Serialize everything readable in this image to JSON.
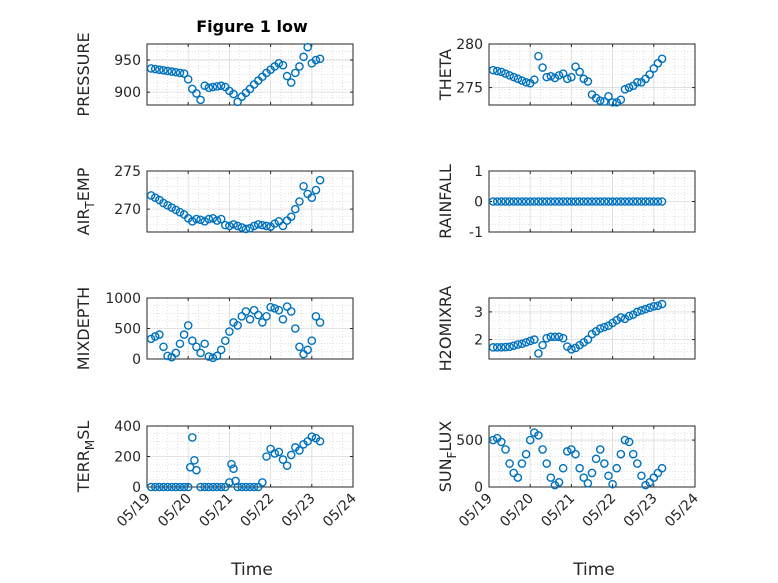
{
  "figure_title": "Figure 1 low",
  "xlabel": "Time",
  "xtick_labels": [
    "05/19",
    "05/20",
    "05/21",
    "05/22",
    "05/23",
    "05/24"
  ],
  "marker_color": "#0072BD",
  "chart_data": [
    {
      "type": "scatter",
      "ylabel": "PRESSURE",
      "ylim": [
        880,
        975
      ],
      "yticks": [
        900,
        950
      ],
      "grid": true,
      "x_range": [
        "05/19",
        "05/24"
      ],
      "x": [
        0.1,
        0.2,
        0.3,
        0.4,
        0.5,
        0.6,
        0.7,
        0.8,
        0.9,
        1.0,
        1.1,
        1.2,
        1.3,
        1.4,
        1.5,
        1.6,
        1.7,
        1.8,
        1.9,
        2.0,
        2.1,
        2.2,
        2.3,
        2.4,
        2.5,
        2.6,
        2.7,
        2.8,
        2.9,
        3.0,
        3.1,
        3.2,
        3.3,
        3.4,
        3.5,
        3.6,
        3.7,
        3.8,
        3.9,
        4.0,
        4.1,
        4.2
      ],
      "y": [
        937,
        936,
        935,
        934,
        933,
        932,
        931,
        930,
        929,
        920,
        905,
        898,
        888,
        910,
        907,
        908,
        909,
        910,
        908,
        902,
        897,
        885,
        893,
        899,
        905,
        912,
        918,
        924,
        930,
        935,
        940,
        945,
        942,
        925,
        915,
        930,
        940,
        955,
        970,
        945,
        950,
        952
      ]
    },
    {
      "type": "scatter",
      "ylabel": "THETA",
      "ylim": [
        273,
        280
      ],
      "yticks": [
        275,
        280
      ],
      "grid": true,
      "x_range": [
        "05/19",
        "05/24"
      ],
      "x": [
        0.1,
        0.2,
        0.3,
        0.4,
        0.5,
        0.6,
        0.7,
        0.8,
        0.9,
        1.0,
        1.1,
        1.2,
        1.3,
        1.4,
        1.5,
        1.6,
        1.7,
        1.8,
        1.9,
        2.0,
        2.1,
        2.2,
        2.3,
        2.4,
        2.5,
        2.6,
        2.7,
        2.8,
        2.9,
        3.0,
        3.1,
        3.2,
        3.3,
        3.4,
        3.5,
        3.6,
        3.7,
        3.8,
        3.9,
        4.0,
        4.1,
        4.2
      ],
      "y": [
        277.0,
        276.9,
        276.8,
        276.6,
        276.4,
        276.2,
        276.0,
        275.8,
        275.6,
        275.5,
        275.9,
        278.6,
        277.3,
        276.2,
        276.3,
        276.1,
        276.4,
        276.6,
        276.0,
        276.2,
        277.4,
        276.8,
        276.0,
        275.7,
        274.2,
        273.8,
        273.5,
        273.4,
        274.0,
        273.3,
        273.3,
        273.6,
        274.8,
        275.0,
        275.2,
        275.6,
        275.6,
        276.0,
        276.5,
        277.2,
        277.8,
        278.3
      ]
    },
    {
      "type": "scatter",
      "ylabel_main": "AIR",
      "ylabel_sub": "T",
      "ylabel_rest": "EMP",
      "ylim": [
        267,
        275
      ],
      "yticks": [
        270,
        275
      ],
      "grid": true,
      "x_range": [
        "05/19",
        "05/24"
      ],
      "x": [
        0.1,
        0.2,
        0.3,
        0.4,
        0.5,
        0.6,
        0.7,
        0.8,
        0.9,
        1.0,
        1.1,
        1.2,
        1.3,
        1.4,
        1.5,
        1.6,
        1.7,
        1.8,
        1.9,
        2.0,
        2.1,
        2.2,
        2.3,
        2.4,
        2.5,
        2.6,
        2.7,
        2.8,
        2.9,
        3.0,
        3.1,
        3.2,
        3.3,
        3.4,
        3.5,
        3.6,
        3.7,
        3.8,
        3.9,
        4.0,
        4.1,
        4.2
      ],
      "y": [
        271.8,
        271.5,
        271.2,
        270.8,
        270.5,
        270.2,
        269.9,
        269.6,
        269.3,
        268.8,
        268.4,
        268.7,
        268.6,
        268.4,
        268.7,
        268.8,
        268.5,
        268.7,
        267.9,
        267.8,
        268.0,
        267.8,
        267.6,
        267.4,
        267.5,
        267.8,
        268.0,
        267.9,
        267.8,
        267.7,
        268.1,
        268.4,
        267.8,
        268.5,
        269.0,
        270.0,
        271.0,
        273.0,
        272.0,
        271.5,
        272.5,
        273.8
      ]
    },
    {
      "type": "scatter",
      "ylabel": "RAINFALL",
      "ylim": [
        -1,
        1
      ],
      "yticks": [
        -1,
        0,
        1
      ],
      "grid": true,
      "x_range": [
        "05/19",
        "05/24"
      ],
      "x": [
        0.1,
        0.2,
        0.3,
        0.4,
        0.5,
        0.6,
        0.7,
        0.8,
        0.9,
        1.0,
        1.1,
        1.2,
        1.3,
        1.4,
        1.5,
        1.6,
        1.7,
        1.8,
        1.9,
        2.0,
        2.1,
        2.2,
        2.3,
        2.4,
        2.5,
        2.6,
        2.7,
        2.8,
        2.9,
        3.0,
        3.1,
        3.2,
        3.3,
        3.4,
        3.5,
        3.6,
        3.7,
        3.8,
        3.9,
        4.0,
        4.1,
        4.2
      ],
      "y": [
        0,
        0,
        0,
        0,
        0,
        0,
        0,
        0,
        0,
        0,
        0,
        0,
        0,
        0,
        0,
        0,
        0,
        0,
        0,
        0,
        0,
        0,
        0,
        0,
        0,
        0,
        0,
        0,
        0,
        0,
        0,
        0,
        0,
        0,
        0,
        0,
        0,
        0,
        0,
        0,
        0,
        0
      ]
    },
    {
      "type": "scatter",
      "ylabel": "MIXDEPTH",
      "ylim": [
        0,
        1000
      ],
      "yticks": [
        0,
        500,
        1000
      ],
      "grid": true,
      "x_range": [
        "05/19",
        "05/24"
      ],
      "x": [
        0.1,
        0.2,
        0.3,
        0.4,
        0.5,
        0.6,
        0.7,
        0.8,
        0.9,
        1.0,
        1.1,
        1.2,
        1.3,
        1.4,
        1.5,
        1.6,
        1.7,
        1.8,
        1.9,
        2.0,
        2.1,
        2.2,
        2.3,
        2.4,
        2.5,
        2.6,
        2.7,
        2.8,
        2.9,
        3.0,
        3.1,
        3.2,
        3.3,
        3.4,
        3.5,
        3.6,
        3.7,
        3.8,
        3.9,
        4.0,
        4.1,
        4.2
      ],
      "y": [
        330,
        370,
        400,
        200,
        50,
        30,
        100,
        250,
        400,
        550,
        300,
        200,
        100,
        250,
        40,
        20,
        50,
        150,
        300,
        450,
        600,
        550,
        700,
        780,
        650,
        800,
        720,
        600,
        700,
        850,
        830,
        800,
        650,
        860,
        780,
        500,
        200,
        80,
        150,
        300,
        700,
        600
      ]
    },
    {
      "type": "scatter",
      "ylabel": "H2OMIXRA",
      "ylim": [
        1.3,
        3.5
      ],
      "yticks": [
        2,
        3
      ],
      "grid": true,
      "x_range": [
        "05/19",
        "05/24"
      ],
      "x": [
        0.1,
        0.2,
        0.3,
        0.4,
        0.5,
        0.6,
        0.7,
        0.8,
        0.9,
        1.0,
        1.1,
        1.2,
        1.3,
        1.4,
        1.5,
        1.6,
        1.7,
        1.8,
        1.9,
        2.0,
        2.1,
        2.2,
        2.3,
        2.4,
        2.5,
        2.6,
        2.7,
        2.8,
        2.9,
        3.0,
        3.1,
        3.2,
        3.3,
        3.4,
        3.5,
        3.6,
        3.7,
        3.8,
        3.9,
        4.0,
        4.1,
        4.2
      ],
      "y": [
        1.72,
        1.72,
        1.72,
        1.73,
        1.74,
        1.78,
        1.82,
        1.85,
        1.9,
        1.95,
        2.0,
        1.5,
        1.8,
        2.05,
        2.1,
        2.1,
        2.1,
        2.05,
        1.75,
        1.65,
        1.7,
        1.8,
        1.9,
        2.0,
        2.2,
        2.3,
        2.4,
        2.45,
        2.5,
        2.6,
        2.7,
        2.8,
        2.75,
        2.85,
        2.9,
        3.0,
        3.05,
        3.1,
        3.15,
        3.2,
        3.22,
        3.28
      ]
    },
    {
      "type": "scatter",
      "ylabel_main": "TERR",
      "ylabel_sub": "M",
      "ylabel_rest": "SL",
      "ylim": [
        0,
        400
      ],
      "yticks": [
        0,
        200,
        400
      ],
      "grid": true,
      "x_range": [
        "05/19",
        "05/24"
      ],
      "x": [
        0.1,
        0.2,
        0.3,
        0.4,
        0.5,
        0.6,
        0.7,
        0.8,
        0.9,
        1.0,
        1.05,
        1.1,
        1.15,
        1.2,
        1.3,
        1.4,
        1.5,
        1.6,
        1.7,
        1.8,
        1.9,
        2.0,
        2.05,
        2.1,
        2.15,
        2.2,
        2.3,
        2.4,
        2.5,
        2.6,
        2.7,
        2.8,
        2.9,
        3.0,
        3.1,
        3.2,
        3.3,
        3.4,
        3.5,
        3.6,
        3.7,
        3.8,
        3.9,
        4.0,
        4.1,
        4.2
      ],
      "y": [
        0,
        0,
        0,
        0,
        0,
        0,
        0,
        0,
        0,
        0,
        130,
        325,
        175,
        110,
        0,
        0,
        0,
        0,
        0,
        0,
        0,
        30,
        150,
        120,
        40,
        0,
        0,
        0,
        0,
        0,
        0,
        30,
        200,
        250,
        220,
        230,
        180,
        140,
        210,
        260,
        240,
        280,
        300,
        330,
        320,
        300
      ]
    },
    {
      "type": "scatter",
      "ylabel_main": "SUN",
      "ylabel_sub": "F",
      "ylabel_rest": "LUX",
      "ylim": [
        0,
        650
      ],
      "yticks": [
        0,
        500
      ],
      "grid": true,
      "x_range": [
        "05/19",
        "05/24"
      ],
      "x": [
        0.1,
        0.2,
        0.3,
        0.4,
        0.5,
        0.6,
        0.7,
        0.8,
        0.9,
        1.0,
        1.1,
        1.2,
        1.3,
        1.4,
        1.5,
        1.6,
        1.7,
        1.8,
        1.9,
        2.0,
        2.1,
        2.2,
        2.3,
        2.4,
        2.5,
        2.6,
        2.7,
        2.8,
        2.9,
        3.0,
        3.1,
        3.2,
        3.3,
        3.4,
        3.5,
        3.6,
        3.7,
        3.8,
        3.9,
        4.0,
        4.1,
        4.2
      ],
      "y": [
        500,
        520,
        480,
        400,
        250,
        150,
        100,
        250,
        350,
        500,
        580,
        550,
        400,
        250,
        100,
        20,
        50,
        200,
        380,
        400,
        350,
        200,
        100,
        40,
        150,
        300,
        400,
        250,
        120,
        30,
        200,
        350,
        500,
        480,
        350,
        250,
        120,
        20,
        50,
        100,
        150,
        200
      ]
    }
  ]
}
